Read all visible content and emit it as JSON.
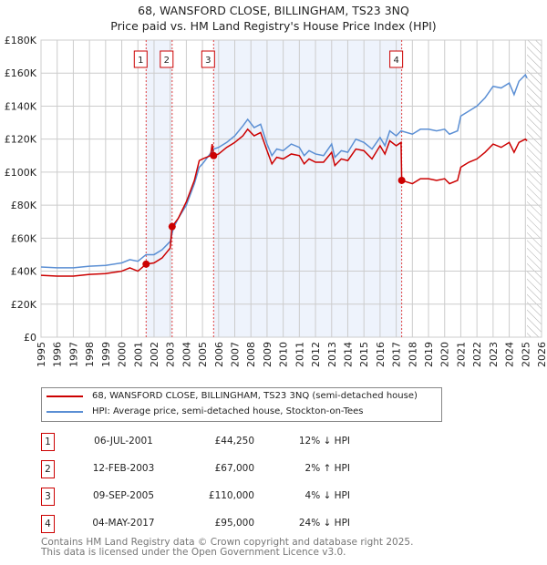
{
  "chart_data": {
    "type": "line",
    "title": "68, WANSFORD CLOSE, BILLINGHAM, TS23 3NQ",
    "subtitle": "Price paid vs. HM Land Registry's House Price Index (HPI)",
    "xlim": [
      1995,
      2026
    ],
    "ylim": [
      0,
      180000
    ],
    "yticks": [
      0,
      20000,
      40000,
      60000,
      80000,
      100000,
      120000,
      140000,
      160000,
      180000
    ],
    "ytick_labels": [
      "£0",
      "£20K",
      "£40K",
      "£60K",
      "£80K",
      "£100K",
      "£120K",
      "£140K",
      "£160K",
      "£180K"
    ],
    "xticks": [
      "1995",
      "1996",
      "1997",
      "1998",
      "1999",
      "2000",
      "2001",
      "2002",
      "2003",
      "2004",
      "2005",
      "2006",
      "2007",
      "2008",
      "2009",
      "2010",
      "2011",
      "2012",
      "2013",
      "2014",
      "2015",
      "2016",
      "2017",
      "2018",
      "2019",
      "2020",
      "2021",
      "2022",
      "2023",
      "2024",
      "2025",
      "2026"
    ],
    "grid": true,
    "shaded_ranges": [
      [
        2001.51,
        2003.12
      ],
      [
        2005.69,
        2017.34
      ]
    ],
    "forecast_hatch_from": 2025.1,
    "series": [
      {
        "name": "68, WANSFORD CLOSE, BILLINGHAM, TS23 3NQ (semi-detached house)",
        "color": "#cc0000",
        "points": [
          [
            1995,
            37.5
          ],
          [
            1996,
            37
          ],
          [
            1997,
            37
          ],
          [
            1998,
            38
          ],
          [
            1999,
            38.5
          ],
          [
            2000,
            40
          ],
          [
            2000.5,
            42
          ],
          [
            2001,
            40
          ],
          [
            2001.51,
            44.25
          ],
          [
            2002,
            45
          ],
          [
            2002.5,
            48
          ],
          [
            2003,
            54
          ],
          [
            2003.12,
            67
          ],
          [
            2003.5,
            72
          ],
          [
            2004,
            82
          ],
          [
            2004.5,
            95
          ],
          [
            2004.8,
            107
          ],
          [
            2005,
            108
          ],
          [
            2005.5,
            110
          ],
          [
            2005.6,
            117
          ],
          [
            2005.69,
            110
          ],
          [
            2006,
            111
          ],
          [
            2006.5,
            115
          ],
          [
            2007,
            118
          ],
          [
            2007.5,
            122
          ],
          [
            2007.8,
            126
          ],
          [
            2008.2,
            122
          ],
          [
            2008.6,
            124
          ],
          [
            2009,
            113
          ],
          [
            2009.3,
            105
          ],
          [
            2009.6,
            109
          ],
          [
            2010,
            108
          ],
          [
            2010.5,
            111
          ],
          [
            2011,
            110
          ],
          [
            2011.3,
            105
          ],
          [
            2011.6,
            108
          ],
          [
            2012,
            106
          ],
          [
            2012.5,
            106
          ],
          [
            2013,
            112
          ],
          [
            2013.2,
            104
          ],
          [
            2013.6,
            108
          ],
          [
            2014,
            107
          ],
          [
            2014.5,
            114
          ],
          [
            2015,
            113
          ],
          [
            2015.5,
            108
          ],
          [
            2016,
            116
          ],
          [
            2016.3,
            111
          ],
          [
            2016.6,
            119
          ],
          [
            2017,
            116
          ],
          [
            2017.3,
            118
          ],
          [
            2017.34,
            95
          ],
          [
            2018,
            93
          ],
          [
            2018.5,
            96
          ],
          [
            2019,
            96
          ],
          [
            2019.5,
            95
          ],
          [
            2020,
            96
          ],
          [
            2020.3,
            93
          ],
          [
            2020.8,
            95
          ],
          [
            2021,
            103
          ],
          [
            2021.5,
            106
          ],
          [
            2022,
            108
          ],
          [
            2022.5,
            112
          ],
          [
            2023,
            117
          ],
          [
            2023.5,
            115
          ],
          [
            2024,
            118
          ],
          [
            2024.3,
            112
          ],
          [
            2024.6,
            118
          ],
          [
            2025,
            120
          ],
          [
            2025.1,
            119
          ]
        ]
      },
      {
        "name": "HPI: Average price, semi-detached house, Stockton-on-Tees",
        "color": "#5b8fd4",
        "points": [
          [
            1995,
            42.5
          ],
          [
            1996,
            42
          ],
          [
            1997,
            42
          ],
          [
            1998,
            43
          ],
          [
            1999,
            43.5
          ],
          [
            2000,
            45
          ],
          [
            2000.5,
            47
          ],
          [
            2001,
            46
          ],
          [
            2001.5,
            50
          ],
          [
            2002,
            50
          ],
          [
            2002.5,
            53
          ],
          [
            2003,
            58
          ],
          [
            2003.2,
            66
          ],
          [
            2003.5,
            72
          ],
          [
            2004,
            80
          ],
          [
            2004.5,
            93
          ],
          [
            2004.8,
            103
          ],
          [
            2005,
            105
          ],
          [
            2005.7,
            114
          ],
          [
            2006,
            115
          ],
          [
            2006.5,
            118
          ],
          [
            2007,
            122
          ],
          [
            2007.5,
            128
          ],
          [
            2007.8,
            132
          ],
          [
            2008.2,
            127
          ],
          [
            2008.6,
            129
          ],
          [
            2009,
            117
          ],
          [
            2009.3,
            110
          ],
          [
            2009.6,
            114
          ],
          [
            2010,
            113
          ],
          [
            2010.5,
            117
          ],
          [
            2011,
            115
          ],
          [
            2011.3,
            110
          ],
          [
            2011.6,
            113
          ],
          [
            2012,
            111
          ],
          [
            2012.5,
            110
          ],
          [
            2013,
            117
          ],
          [
            2013.2,
            109
          ],
          [
            2013.6,
            113
          ],
          [
            2014,
            112
          ],
          [
            2014.5,
            120
          ],
          [
            2015,
            118
          ],
          [
            2015.5,
            114
          ],
          [
            2016,
            121
          ],
          [
            2016.3,
            116
          ],
          [
            2016.6,
            125
          ],
          [
            2017,
            122
          ],
          [
            2017.3,
            125
          ],
          [
            2018,
            123
          ],
          [
            2018.5,
            126
          ],
          [
            2019,
            126
          ],
          [
            2019.5,
            125
          ],
          [
            2020,
            126
          ],
          [
            2020.3,
            123
          ],
          [
            2020.8,
            125
          ],
          [
            2021,
            134
          ],
          [
            2021.5,
            137
          ],
          [
            2022,
            140
          ],
          [
            2022.5,
            145
          ],
          [
            2023,
            152
          ],
          [
            2023.5,
            151
          ],
          [
            2024,
            154
          ],
          [
            2024.3,
            147
          ],
          [
            2024.6,
            155
          ],
          [
            2025,
            159
          ],
          [
            2025.1,
            157
          ]
        ]
      }
    ],
    "sales": [
      {
        "label": "1",
        "x": 2001.51,
        "y": 44.25
      },
      {
        "label": "2",
        "x": 2003.12,
        "y": 67
      },
      {
        "label": "3",
        "x": 2005.69,
        "y": 110
      },
      {
        "label": "4",
        "x": 2017.34,
        "y": 95
      }
    ]
  },
  "legend": [
    "68, WANSFORD CLOSE, BILLINGHAM, TS23 3NQ (semi-detached house)",
    "HPI: Average price, semi-detached house, Stockton-on-Tees"
  ],
  "transactions": [
    {
      "num": "1",
      "date": "06-JUL-2001",
      "price": "£44,250",
      "hpi": "12% ↓ HPI"
    },
    {
      "num": "2",
      "date": "12-FEB-2003",
      "price": "£67,000",
      "hpi": "2% ↑ HPI"
    },
    {
      "num": "3",
      "date": "09-SEP-2005",
      "price": "£110,000",
      "hpi": "4% ↓ HPI"
    },
    {
      "num": "4",
      "date": "04-MAY-2017",
      "price": "£95,000",
      "hpi": "24% ↓ HPI"
    }
  ],
  "footer": [
    "Contains HM Land Registry data © Crown copyright and database right 2025.",
    "This data is licensed under the Open Government Licence v3.0."
  ]
}
